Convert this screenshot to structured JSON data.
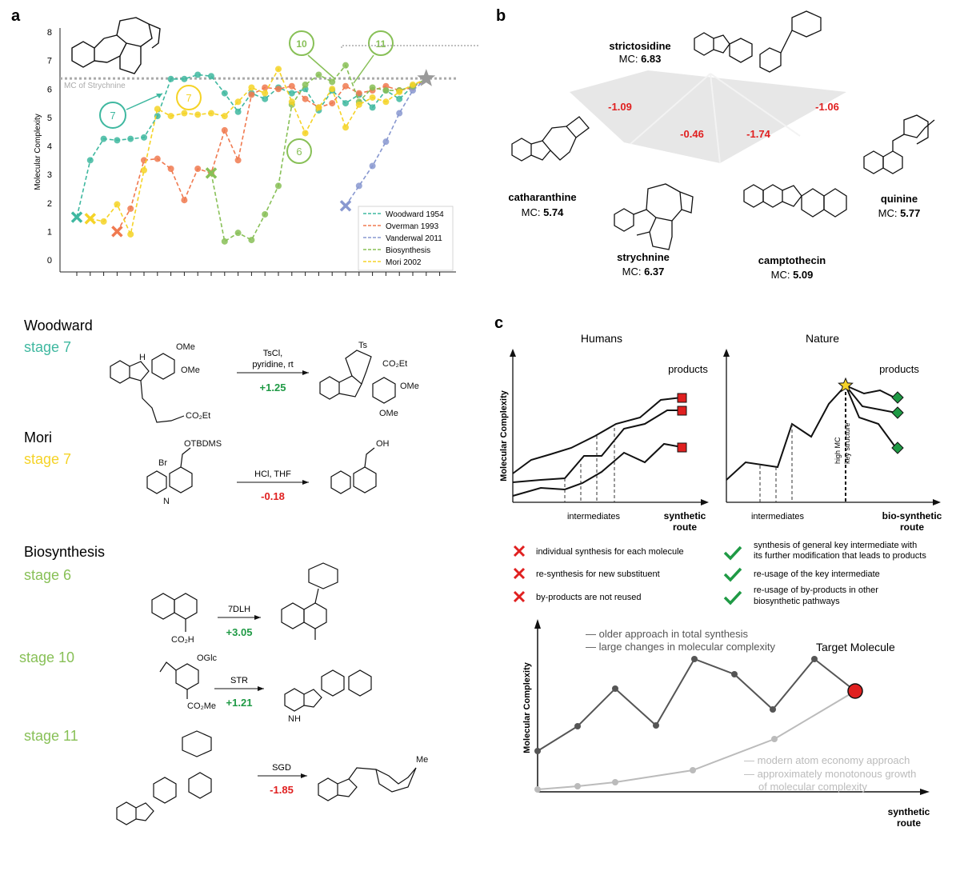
{
  "panel_a": {
    "letter": "a",
    "ylabel": "Molecular Complexity",
    "yticks": [
      "0",
      "1",
      "2",
      "3",
      "4",
      "5",
      "6",
      "7",
      "8"
    ],
    "ref_label": "MC of Strychnine",
    "ref_value": 6.37,
    "stage_labels": [
      "7",
      "7",
      "6",
      "10",
      "11"
    ],
    "legend": [
      "Woodward 1954",
      "Overman 1993",
      "Vanderwal 2011",
      "Biosynthesis",
      "Mori 2002"
    ]
  },
  "chart_data": {
    "type": "line",
    "ylabel": "Molecular Complexity",
    "ylim": [
      0,
      8
    ],
    "x_count": 27,
    "reference_line": {
      "label": "MC of Strychnine",
      "value": 6.37
    },
    "series": [
      {
        "name": "Woodward 1954",
        "color": "#3fb8a0",
        "x": [
          1,
          2,
          3,
          4,
          5,
          6,
          7,
          8,
          9,
          10,
          11,
          12,
          13,
          14,
          15,
          16,
          17,
          18,
          19,
          20,
          21,
          22,
          23,
          24,
          25,
          26,
          27
        ],
        "values": [
          1.5,
          3.5,
          4.25,
          4.2,
          4.25,
          4.3,
          5.05,
          6.35,
          6.35,
          6.5,
          6.45,
          5.85,
          5.2,
          5.85,
          5.65,
          6.05,
          5.85,
          6.0,
          5.25,
          5.95,
          5.5,
          5.8,
          5.35,
          5.95,
          5.65,
          6.1,
          6.35
        ]
      },
      {
        "name": "Overman 1993",
        "color": "#f07a50",
        "x": [
          4,
          5,
          6,
          7,
          8,
          9,
          10,
          11,
          12,
          13,
          14,
          15,
          16,
          17,
          18,
          19,
          20,
          21,
          22,
          23,
          24,
          25,
          26,
          27
        ],
        "values": [
          1.0,
          1.8,
          3.5,
          3.55,
          3.2,
          2.1,
          3.2,
          3.05,
          4.55,
          3.5,
          5.8,
          6.05,
          6.0,
          6.1,
          5.65,
          5.35,
          5.5,
          6.1,
          5.85,
          5.95,
          6.1,
          5.95,
          6.05,
          6.35
        ]
      },
      {
        "name": "Vanderwal 2011",
        "color": "#8898d0",
        "x": [
          21,
          22,
          23,
          24,
          25,
          26,
          27
        ],
        "values": [
          1.9,
          2.6,
          3.3,
          4.15,
          5.15,
          5.95,
          6.35
        ]
      },
      {
        "name": "Biosynthesis",
        "color": "#88c057",
        "x": [
          11,
          12,
          13,
          14,
          15,
          16,
          17,
          18,
          19,
          20,
          21,
          22,
          23,
          24,
          25,
          26,
          27
        ],
        "values": [
          3.05,
          0.65,
          0.95,
          0.7,
          1.6,
          2.6,
          5.45,
          6.15,
          6.5,
          6.25,
          6.83,
          5.55,
          6.05,
          5.95,
          5.95,
          6.1,
          6.35
        ]
      },
      {
        "name": "Mori 2002",
        "color": "#f5d327",
        "x": [
          2,
          3,
          4,
          5,
          6,
          7,
          8,
          9,
          10,
          11,
          12,
          13,
          14,
          15,
          16,
          17,
          18,
          19,
          20,
          21,
          22,
          23,
          24,
          25,
          26,
          27
        ],
        "values": [
          1.45,
          1.35,
          1.95,
          0.9,
          3.15,
          5.3,
          5.05,
          5.15,
          5.1,
          5.15,
          5.05,
          5.55,
          6.05,
          5.85,
          6.7,
          5.55,
          4.45,
          5.35,
          6.0,
          4.65,
          5.45,
          5.7,
          5.55,
          5.9,
          6.15,
          6.35
        ]
      }
    ]
  },
  "panel_b": {
    "letter": "b",
    "center": {
      "name": "strictosidine",
      "mc_label": "MC: ",
      "mc": "6.83"
    },
    "deltas": [
      "-1.09",
      "-0.46",
      "-1.74",
      "-1.06"
    ],
    "products": [
      {
        "name": "catharanthine",
        "mc_label": "MC: ",
        "mc": "5.74"
      },
      {
        "name": "strychnine",
        "mc_label": "MC: ",
        "mc": "6.37"
      },
      {
        "name": "camptothecin",
        "mc_label": "MC: ",
        "mc": "5.09"
      },
      {
        "name": "quinine",
        "mc_label": "MC: ",
        "mc": "5.77"
      }
    ]
  },
  "reactions": {
    "woodward": {
      "title": "Woodward",
      "stage": "stage 7",
      "reagent1": "TsCl,",
      "reagent2": "pyridine, rt",
      "delta": "+1.25"
    },
    "mori": {
      "title": "Mori",
      "stage": "stage 7",
      "reagent1": "HCl, THF",
      "delta": "-0.18"
    },
    "bio_title": "Biosynthesis",
    "bio6": {
      "stage": "stage 6",
      "reagent1": "7DLH",
      "delta": "+3.05"
    },
    "bio10": {
      "stage": "stage 10",
      "reagent1": "STR",
      "delta": "+1.21"
    },
    "bio11": {
      "stage": "stage 11",
      "reagent1": "SGD",
      "delta": "-1.85"
    },
    "atoms": {
      "ome1": "OMe",
      "ome2": "OMe",
      "co2et": "CO₂Et",
      "ts": "Ts",
      "co2et2": "CO₂Et",
      "ome3": "OMe",
      "ome4": "OMe",
      "h": "H",
      "n": "N",
      "br": "Br",
      "otbdms": "OTBDMS",
      "oh": "OH",
      "co2h": "CO₂H",
      "oglc": "OGlc",
      "co2me": "CO₂Me",
      "nh": "NH",
      "me": "Me"
    }
  },
  "panel_c": {
    "letter": "c",
    "humans_title": "Humans",
    "nature_title": "Nature",
    "ylabel": "Molecular Complexity",
    "products": "products",
    "intermediates": "intermediates",
    "synthetic_route": [
      "synthetic",
      "route"
    ],
    "biosynthetic_route": [
      "bio-synthetic",
      "route"
    ],
    "key_note": [
      "high MC",
      "key structure"
    ],
    "cons": [
      "individual synthesis for each molecule",
      "re-synthesis for new substituent",
      "by-products are not reused"
    ],
    "pros": [
      [
        "synthesis of general key intermediate with",
        "its further modification that leads to products"
      ],
      [
        "re-usage of the key intermediate"
      ],
      [
        "re-usage of by-products in other",
        "biosynthetic pathways"
      ]
    ],
    "bottom": {
      "legend_dark": [
        "— older approach in total synthesis",
        "— large changes in molecular complexity"
      ],
      "legend_light": [
        "— modern atom economy approach",
        "— approximately monotonous growth",
        "of molecular complexity"
      ],
      "target": "Target Molecule",
      "ylabel": "Molecular Complexity",
      "xlabel": [
        "synthetic",
        "route"
      ]
    }
  }
}
